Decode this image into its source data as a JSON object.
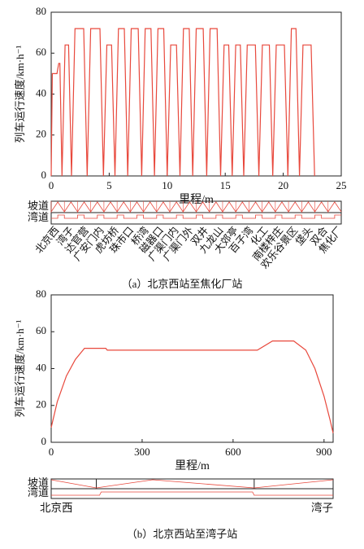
{
  "chart_data": [
    {
      "type": "line",
      "xlabel": "里程/m",
      "ylabel": "列车运行速度/km·h⁻¹",
      "caption": "（a）北京西站至焦化厂站",
      "x": [
        0,
        0.1,
        0.5,
        0.65,
        0.75,
        0.93,
        1.2,
        1.5,
        1.75,
        2.05,
        2.8,
        3.1,
        3.4,
        4.2,
        4.5,
        4.8,
        5.2,
        5.5,
        5.8,
        6.3,
        6.6,
        6.9,
        7.5,
        7.8,
        8.1,
        8.6,
        8.9,
        9.2,
        9.7,
        10.0,
        10.3,
        10.8,
        11.1,
        11.4,
        11.9,
        12.2,
        12.5,
        13.1,
        13.4,
        13.7,
        14.3,
        14.6,
        14.9,
        15.3,
        15.6,
        15.9,
        16.3,
        16.6,
        16.9,
        17.6,
        17.9,
        18.2,
        18.8,
        19.1,
        19.4,
        20.1,
        20.4,
        20.7,
        21.1,
        21.4,
        21.7,
        22.4,
        22.7
      ],
      "values": [
        0,
        50,
        50,
        55,
        55,
        0,
        64,
        64,
        0,
        72,
        72,
        0,
        72,
        72,
        0,
        64,
        64,
        0,
        72,
        72,
        0,
        72,
        72,
        0,
        72,
        72,
        0,
        72,
        72,
        0,
        64,
        64,
        0,
        72,
        72,
        0,
        72,
        72,
        0,
        72,
        72,
        0,
        64,
        64,
        0,
        64,
        64,
        0,
        64,
        64,
        0,
        64,
        64,
        0,
        64,
        64,
        0,
        72,
        72,
        0,
        64,
        64,
        0
      ],
      "color": "#e8483c",
      "xlim": [
        0,
        25
      ],
      "xticks": [
        0,
        5,
        10,
        15,
        20,
        25
      ],
      "ylim": [
        0,
        80
      ],
      "yticks": [
        0,
        20,
        40,
        60,
        80
      ],
      "track_labels": [
        "坡道",
        "湾道"
      ],
      "stations": [
        "北京西",
        "湾子",
        "达官营",
        "广安门内",
        "虎坊桥",
        "珠市口",
        "桥湾",
        "磁器口",
        "广渠门内",
        "广渠门外",
        "双井",
        "九龙山",
        "大郊亭",
        "百子湾",
        "化工",
        "南楼梓庄",
        "欢乐谷景区",
        "垡头",
        "双合",
        "焦化厂"
      ]
    },
    {
      "type": "line",
      "xlabel": "里程/m",
      "ylabel": "列车运行速度/km·h⁻¹",
      "caption": "（b）北京西站至湾子站",
      "x": [
        0,
        20,
        50,
        80,
        110,
        180,
        185,
        680,
        730,
        800,
        840,
        870,
        900,
        920,
        930
      ],
      "values": [
        8,
        22,
        36,
        45,
        51,
        51,
        50,
        50,
        55,
        55,
        50,
        40,
        25,
        12,
        5
      ],
      "color": "#e8483c",
      "xlim": [
        0,
        930
      ],
      "xticks": [
        0,
        300,
        600,
        900
      ],
      "ylim": [
        0,
        80
      ],
      "yticks": [
        0,
        20,
        40,
        60,
        80
      ],
      "track_labels": [
        "坡道",
        "湾道"
      ],
      "stations": [
        "北京西",
        "湾子"
      ]
    }
  ]
}
